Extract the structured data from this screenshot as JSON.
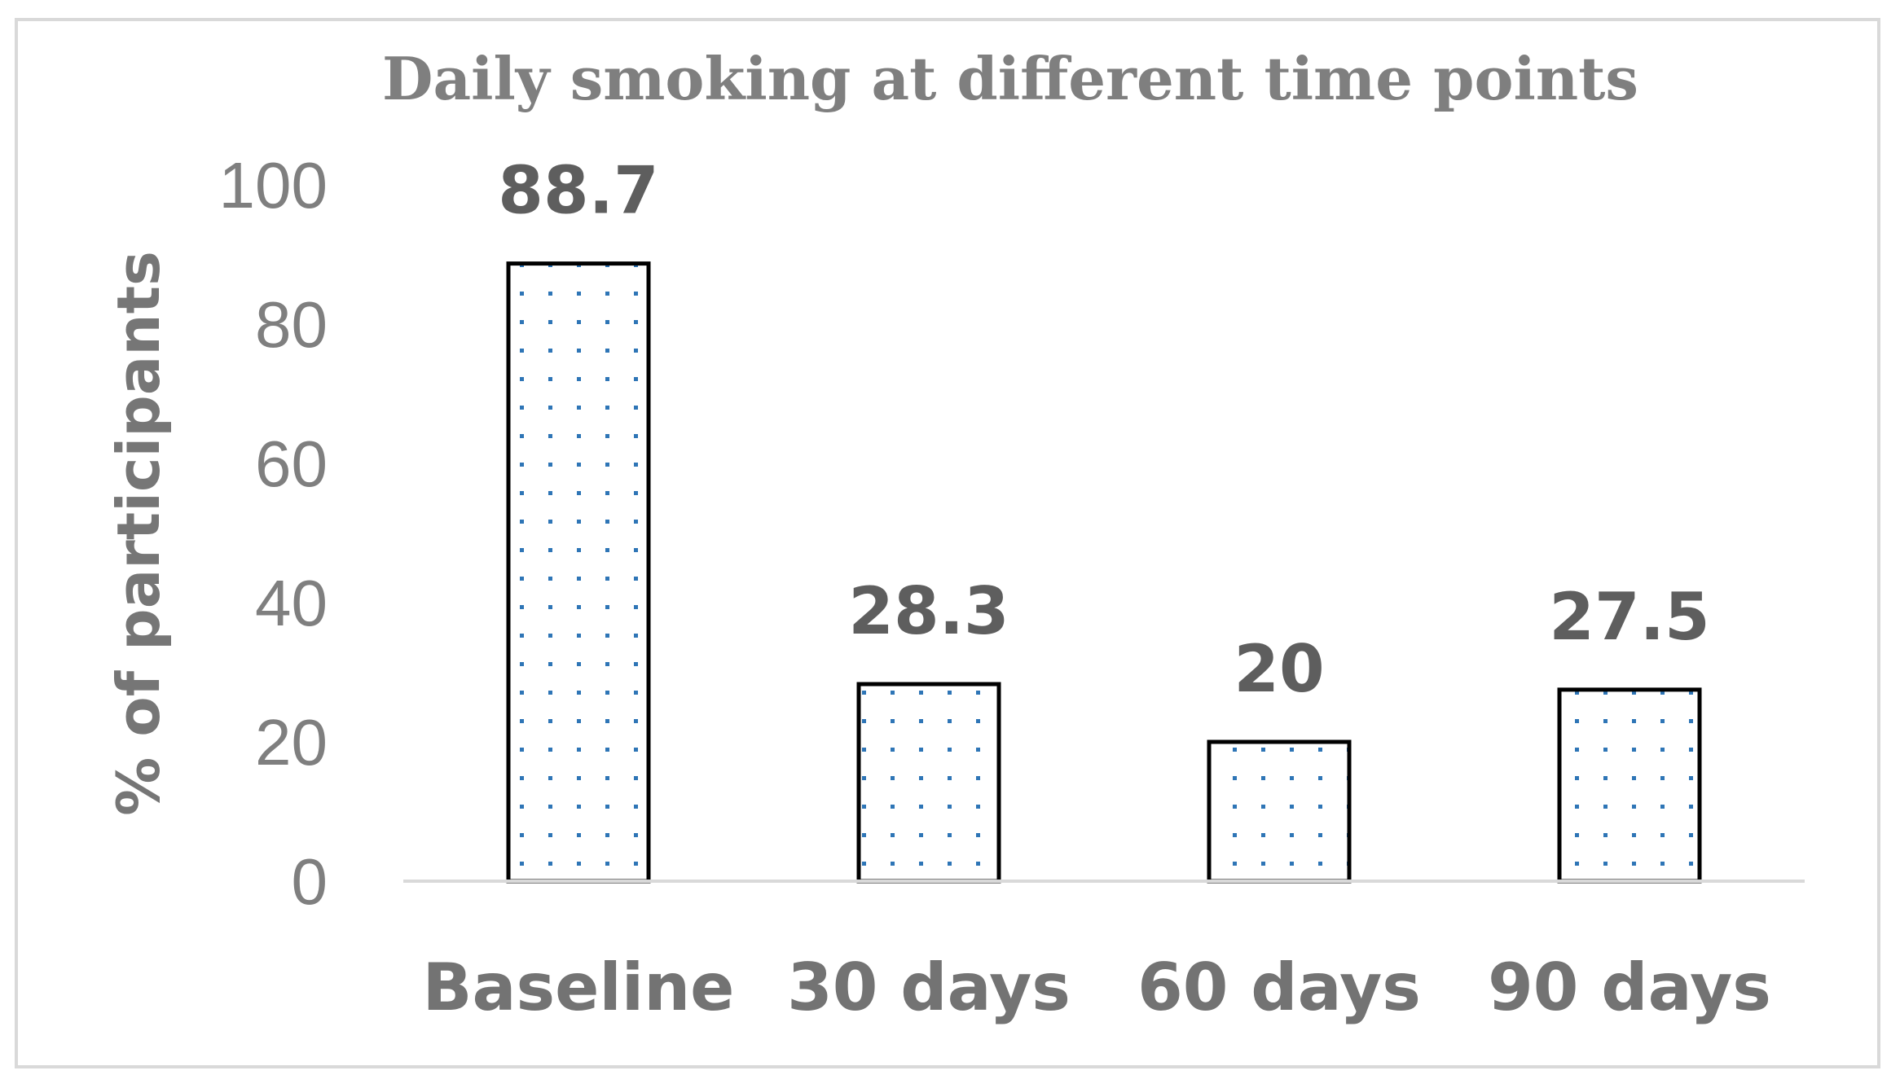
{
  "chart_data": {
    "type": "bar",
    "title": "Daily smoking at different time points",
    "xlabel": "",
    "ylabel": "% of participants",
    "categories": [
      "Baseline",
      "30 days",
      "60 days",
      "90 days"
    ],
    "values": [
      88.7,
      28.3,
      20,
      27.5
    ],
    "data_labels": [
      "88.7",
      "28.3",
      "20",
      "27.5"
    ],
    "ylim": [
      0,
      100
    ],
    "yticks": [
      0,
      20,
      40,
      60,
      80,
      100
    ],
    "ytick_labels": [
      "0",
      "20",
      "40",
      "60",
      "80",
      "100"
    ],
    "grid": false,
    "legend": "none",
    "bar_fill": "dotted pattern",
    "colors": {
      "bar_outline": "#000000",
      "dot_pattern": "#2e75b6",
      "axis_line": "#d9d9d9",
      "text": "#7f7f7f"
    }
  }
}
